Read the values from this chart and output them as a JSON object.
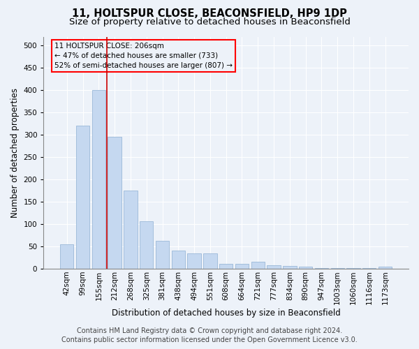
{
  "title1": "11, HOLTSPUR CLOSE, BEACONSFIELD, HP9 1DP",
  "title2": "Size of property relative to detached houses in Beaconsfield",
  "xlabel": "Distribution of detached houses by size in Beaconsfield",
  "ylabel": "Number of detached properties",
  "footer1": "Contains HM Land Registry data © Crown copyright and database right 2024.",
  "footer2": "Contains public sector information licensed under the Open Government Licence v3.0.",
  "annotation_line1": "11 HOLTSPUR CLOSE: 206sqm",
  "annotation_line2": "← 47% of detached houses are smaller (733)",
  "annotation_line3": "52% of semi-detached houses are larger (807) →",
  "bar_color": "#c5d8f0",
  "bar_edge_color": "#9ab8d8",
  "bar_line_color": "#cc0000",
  "categories": [
    "42sqm",
    "99sqm",
    "155sqm",
    "212sqm",
    "268sqm",
    "325sqm",
    "381sqm",
    "438sqm",
    "494sqm",
    "551sqm",
    "608sqm",
    "664sqm",
    "721sqm",
    "777sqm",
    "834sqm",
    "890sqm",
    "947sqm",
    "1003sqm",
    "1060sqm",
    "1116sqm",
    "1173sqm"
  ],
  "values": [
    55,
    320,
    400,
    295,
    175,
    107,
    62,
    40,
    35,
    35,
    11,
    11,
    15,
    8,
    6,
    4,
    2,
    1,
    1,
    1,
    5
  ],
  "ylim": [
    0,
    520
  ],
  "yticks": [
    0,
    50,
    100,
    150,
    200,
    250,
    300,
    350,
    400,
    450,
    500
  ],
  "background_color": "#edf2f9",
  "grid_color": "#ffffff",
  "title_fontsize": 10.5,
  "subtitle_fontsize": 9.5,
  "axis_label_fontsize": 8.5,
  "tick_fontsize": 7.5,
  "annotation_fontsize": 7.5,
  "footer_fontsize": 7,
  "line_x_index": 2.5
}
